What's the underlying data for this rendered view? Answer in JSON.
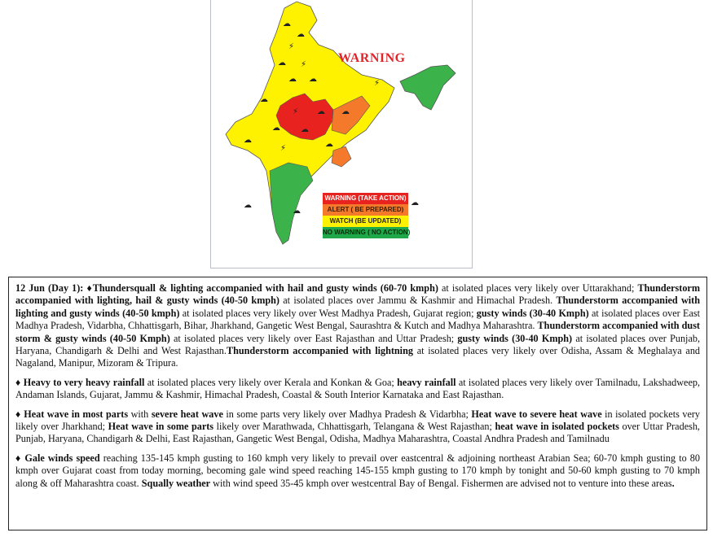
{
  "map": {
    "title": "WARNING",
    "legend": [
      {
        "label": "WARNING (TAKE ACTION)",
        "color": "#e8231f",
        "text_color": "#ffffff"
      },
      {
        "label": "ALERT ( BE PREPARED)",
        "color": "#f4792b",
        "text_color": "#3a1a00"
      },
      {
        "label": "WATCH (BE UPDATED)",
        "color": "#fff200",
        "text_color": "#222222"
      },
      {
        "label": "NO WARNING ( NO ACTION)",
        "color": "#1ea84a",
        "text_color": "#0b2a0b"
      }
    ]
  },
  "bulletin": {
    "paragraphs": [
      [
        {
          "t": "12 Jun (Day 1): ",
          "b": true
        },
        {
          "t": "♦Thundersquall & lighting accompanied with hail and gusty winds  (60-70 kmph)",
          "b": true
        },
        {
          "t": " at isolated places very likely over Uttarakhand; ",
          "b": false
        },
        {
          "t": "Thunderstorm accompanied with lighting, hail & gusty winds  (40-50 kmph)",
          "b": true
        },
        {
          "t": " at isolated places over Jammu & Kashmir and  Himachal Pradesh. ",
          "b": false
        },
        {
          "t": "Thunderstorm accompanied with lighting and gusty winds  (40-50 kmph)",
          "b": true
        },
        {
          "t": " at isolated places very likely over West Madhya Pradesh, Gujarat region; ",
          "b": false
        },
        {
          "t": "gusty winds (30-40 Kmph)",
          "b": true
        },
        {
          "t": " at isolated places over East Madhya Pradesh, Vidarbha, Chhattisgarh, Bihar, Jharkhand, Gangetic West Bengal, Saurashtra & Kutch and Madhya Maharashtra. ",
          "b": false
        },
        {
          "t": "Thunderstorm accompanied with dust storm & gusty winds (40-50 Kmph)",
          "b": true
        },
        {
          "t": " at isolated places very likely over East Rajasthan and Uttar Pradesh; ",
          "b": false
        },
        {
          "t": "gusty winds (30-40 Kmph)",
          "b": true
        },
        {
          "t": " at isolated places over Punjab, Haryana, Chandigarh & Delhi and West Rajasthan.",
          "b": false
        },
        {
          "t": "Thunderstorm accompanied with lightning",
          "b": true
        },
        {
          "t": " at isolated places very likely over Odisha, Assam & Meghalaya and Nagaland, Manipur, Mizoram & Tripura.",
          "b": false
        }
      ],
      [
        {
          "t": "♦ Heavy to very heavy rainfall",
          "b": true
        },
        {
          "t": " at isolated places very likely over Kerala and Konkan & Goa; ",
          "b": false
        },
        {
          "t": "heavy rainfall",
          "b": true
        },
        {
          "t": " at isolated places very likely over Tamilnadu, Lakshadweep, Andaman Islands, Gujarat, Jammu & Kashmir, Himachal Pradesh, Coastal & South Interior Karnataka and East Rajasthan.",
          "b": false
        }
      ],
      [
        {
          "t": "♦ Heat wave in most parts",
          "b": true
        },
        {
          "t": " with ",
          "b": false
        },
        {
          "t": "severe heat wave",
          "b": true
        },
        {
          "t": " in some parts  very likely over Madhya Pradesh & Vidarbha;  ",
          "b": false
        },
        {
          "t": "Heat wave to severe heat wave",
          "b": true
        },
        {
          "t": " in isolated pockets very likely over Jharkhand; ",
          "b": false
        },
        {
          "t": "Heat wave in some parts",
          "b": true
        },
        {
          "t": "  likely over Marathwada, Chhattisgarh, Telangana & West Rajasthan; ",
          "b": false
        },
        {
          "t": "heat wave in isolated pockets",
          "b": true
        },
        {
          "t": " over Uttar Pradesh, Punjab, Haryana, Chandigarh & Delhi,  East Rajasthan,  Gangetic West Bengal, Odisha, Madhya Maharashtra, Coastal Andhra Pradesh and Tamilnadu",
          "b": false
        }
      ],
      [
        {
          "t": "♦ Gale winds speed",
          "b": true
        },
        {
          "t": " reaching 135-145 kmph gusting to 160 kmph very likely to prevail over eastcentral & adjoining northeast Arabian Sea; 60-70 kmph gusting to 80 kmph over Gujarat coast from today morning, becoming gale wind speed reaching 145-155 kmph gusting to 170 kmph by tonight and 50-60 kmph gusting to 70 kmph along & off Maharashtra coast. ",
          "b": false
        },
        {
          "t": "Squally weather",
          "b": true
        },
        {
          "t": " with wind speed 35-45 kmph over westcentral Bay of Bengal. Fishermen are advised not to venture into these areas",
          "b": false
        },
        {
          "t": ".",
          "b": true
        }
      ]
    ]
  }
}
